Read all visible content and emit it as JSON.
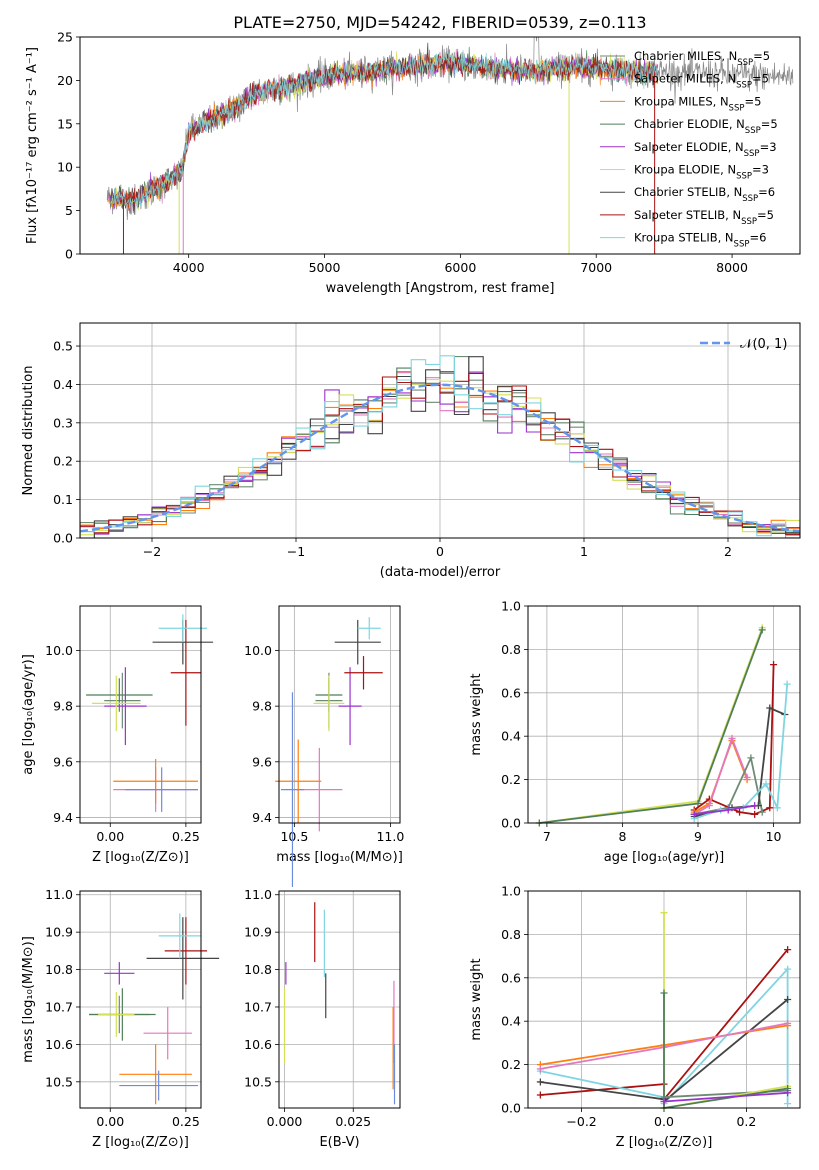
{
  "figure": {
    "title": "PLATE=2750, MJD=54242, FIBERID=0539, z=0.113"
  },
  "model_colors": {
    "chabrier_miles": "#6e8b76",
    "salpeter_miles": "#e377c2",
    "kroupa_miles": "#ff7f0e",
    "chabrier_elodie": "#4f7f5a",
    "salpeter_elodie": "#9932cc",
    "kroupa_elodie": "#d4e157",
    "chabrier_stelib": "#444444",
    "salpeter_stelib": "#aa1111",
    "kroupa_stelib": "#7fd6e0"
  },
  "chart_data": [
    {
      "id": "spectrum",
      "type": "line",
      "xlabel": "wavelength [Angstrom, rest frame]",
      "ylabel": "Flux [fλ10⁻¹⁷ erg cm⁻² s⁻¹ A⁻¹]",
      "xlim": [
        3200,
        8500
      ],
      "ylim": [
        0,
        25
      ],
      "xticks": [
        "4000",
        "5000",
        "6000",
        "7000",
        "8000"
      ],
      "yticks": [
        "0",
        "5",
        "10",
        "15",
        "20",
        "25"
      ],
      "grid": false,
      "legend_position": "top-right",
      "legend": [
        "Chabrier MILES, N_SSP=5",
        "Salpeter MILES, N_SSP=5",
        "Kroupa MILES, N_SSP=5",
        "Chabrier ELODIE, N_SSP=5",
        "Salpeter ELODIE, N_SSP=3",
        "Kroupa ELODIE, N_SSP=3",
        "Chabrier STELIB, N_SSP=6",
        "Salpeter STELIB, N_SSP=5",
        "Kroupa STELIB, N_SSP=6"
      ],
      "continuum": {
        "x": [
          3400,
          3600,
          3800,
          3950,
          4000,
          4100,
          4300,
          4500,
          4800,
          5000,
          5300,
          5600,
          5900,
          6200,
          6500,
          6800,
          7000,
          7300,
          7450
        ],
        "y": [
          6.5,
          6.2,
          8.0,
          9.5,
          14.0,
          15.0,
          16.5,
          18.5,
          19.5,
          20.5,
          21.0,
          21.5,
          22.0,
          21.5,
          21.0,
          21.5,
          21.5,
          21.0,
          21.0
        ]
      }
    },
    {
      "id": "residual-hist",
      "type": "line",
      "xlabel": "(data-model)/error",
      "ylabel": "Normed distribution",
      "xlim": [
        -2.5,
        2.5
      ],
      "ylim": [
        0,
        0.56
      ],
      "xticks": [
        "−2",
        "−1",
        "0",
        "1",
        "2"
      ],
      "yticks": [
        "0.0",
        "0.1",
        "0.2",
        "0.3",
        "0.4",
        "0.5"
      ],
      "grid": true,
      "legend_position": "top-right",
      "legend": [
        "𝒩(0, 1)"
      ],
      "gaussian": {
        "mean": 0,
        "sigma": 1
      },
      "bin_width": 0.1
    },
    {
      "id": "age-vs-z",
      "type": "scatter",
      "xlabel": "Z [log₁₀(Z/Z⊙)]",
      "ylabel": "age [log₁₀(age/yr)]",
      "xlim": [
        -0.1,
        0.3
      ],
      "ylim": [
        9.38,
        10.16
      ],
      "xticks": [
        "0.00",
        "0.25"
      ],
      "yticks": [
        "9.4",
        "9.6",
        "9.8",
        "10.0"
      ],
      "grid": true,
      "points": [
        {
          "model": "chabrier_miles",
          "x": 0.04,
          "xerr": 0.06,
          "y": 9.82,
          "yerr": 0.1
        },
        {
          "model": "salpeter_miles",
          "x": 0.15,
          "xerr": 0.14,
          "y": 9.5,
          "yerr": 0.08
        },
        {
          "model": "kroupa_miles",
          "x": 0.15,
          "xerr": 0.14,
          "y": 9.53,
          "yerr": 0.08
        },
        {
          "model": "chabrier_elodie",
          "x": 0.03,
          "xerr": 0.11,
          "y": 9.84,
          "yerr": 0.06
        },
        {
          "model": "salpeter_elodie",
          "x": 0.05,
          "xerr": 0.07,
          "y": 9.8,
          "yerr": 0.14
        },
        {
          "model": "kroupa_elodie",
          "x": 0.02,
          "xerr": 0.08,
          "y": 9.81,
          "yerr": 0.1
        },
        {
          "model": "chabrier_stelib",
          "x": 0.24,
          "xerr": 0.1,
          "y": 10.03,
          "yerr": 0.08
        },
        {
          "model": "salpeter_stelib",
          "x": 0.25,
          "xerr": 0.05,
          "y": 9.92,
          "yerr": 0.19
        },
        {
          "model": "kroupa_stelib",
          "x": 0.24,
          "xerr": 0.08,
          "y": 10.08,
          "yerr": 0.05
        },
        {
          "model": "blue_extra",
          "x": 0.17,
          "xerr": 0.12,
          "y": 9.5,
          "yerr": 0.08
        }
      ]
    },
    {
      "id": "age-vs-mass",
      "type": "scatter",
      "xlabel": "mass [log₁₀(M/M⊙)]",
      "ylabel": "",
      "xlim": [
        10.42,
        11.05
      ],
      "ylim": [
        9.38,
        10.16
      ],
      "xticks": [
        "10.5",
        "11.0"
      ],
      "yticks": [
        "9.4",
        "9.6",
        "9.8",
        "10.0"
      ],
      "grid": true,
      "points": [
        {
          "model": "chabrier_miles",
          "x": 10.68,
          "xerr": 0.07,
          "y": 9.82,
          "yerr": 0.1
        },
        {
          "model": "salpeter_miles",
          "x": 10.63,
          "xerr": 0.12,
          "y": 9.5,
          "yerr": 0.15
        },
        {
          "model": "kroupa_miles",
          "x": 10.52,
          "xerr": 0.12,
          "y": 9.53,
          "yerr": 0.15
        },
        {
          "model": "chabrier_elodie",
          "x": 10.68,
          "xerr": 0.07,
          "y": 9.84,
          "yerr": 0.06
        },
        {
          "model": "salpeter_elodie",
          "x": 10.79,
          "xerr": 0.06,
          "y": 9.8,
          "yerr": 0.14
        },
        {
          "model": "kroupa_elodie",
          "x": 10.68,
          "xerr": 0.08,
          "y": 9.81,
          "yerr": 0.1
        },
        {
          "model": "chabrier_stelib",
          "x": 10.83,
          "xerr": 0.12,
          "y": 10.03,
          "yerr": 0.08
        },
        {
          "model": "salpeter_stelib",
          "x": 10.86,
          "xerr": 0.1,
          "y": 9.92,
          "yerr": 0.06
        },
        {
          "model": "kroupa_stelib",
          "x": 10.89,
          "xerr": 0.06,
          "y": 10.08,
          "yerr": 0.04
        },
        {
          "model": "blue_extra",
          "x": 10.49,
          "xerr": 0.06,
          "y": 9.5,
          "yerr": 0.35
        }
      ]
    },
    {
      "id": "weight-vs-age",
      "type": "line",
      "xlabel": "age [log₁₀(age/yr)]",
      "ylabel": "mass weight",
      "xlim": [
        6.75,
        10.35
      ],
      "ylim": [
        0,
        1.0
      ],
      "xticks": [
        "7",
        "8",
        "9",
        "10"
      ],
      "yticks": [
        "0.0",
        "0.2",
        "0.4",
        "0.6",
        "0.8",
        "1.0"
      ],
      "grid": true,
      "series": [
        {
          "model": "kroupa_elodie",
          "x": [
            6.9,
            9.0,
            9.85
          ],
          "y": [
            0.0,
            0.1,
            0.9
          ]
        },
        {
          "model": "chabrier_elodie",
          "x": [
            6.9,
            9.0,
            9.85
          ],
          "y": [
            0.0,
            0.09,
            0.89
          ]
        },
        {
          "model": "salpeter_stelib",
          "x": [
            8.95,
            9.15,
            9.55,
            9.75,
            9.95,
            10.0
          ],
          "y": [
            0.06,
            0.11,
            0.05,
            0.04,
            0.07,
            0.73
          ]
        },
        {
          "model": "kroupa_miles",
          "x": [
            8.95,
            9.15,
            9.45,
            9.65
          ],
          "y": [
            0.05,
            0.09,
            0.38,
            0.2
          ]
        },
        {
          "model": "salpeter_miles",
          "x": [
            8.95,
            9.15,
            9.45,
            9.65
          ],
          "y": [
            0.04,
            0.08,
            0.39,
            0.21
          ]
        },
        {
          "model": "chabrier_miles",
          "x": [
            8.95,
            9.4,
            9.7,
            9.85
          ],
          "y": [
            0.04,
            0.07,
            0.3,
            0.05
          ]
        },
        {
          "model": "chabrier_stelib",
          "x": [
            8.95,
            9.45,
            9.8,
            9.95,
            10.15
          ],
          "y": [
            0.03,
            0.07,
            0.08,
            0.53,
            0.5
          ]
        },
        {
          "model": "kroupa_stelib",
          "x": [
            8.95,
            9.3,
            9.6,
            9.9,
            10.05,
            10.18
          ],
          "y": [
            0.02,
            0.06,
            0.07,
            0.18,
            0.07,
            0.64
          ]
        },
        {
          "model": "salpeter_elodie",
          "x": [
            8.95,
            9.4,
            9.75
          ],
          "y": [
            0.04,
            0.06,
            0.08
          ]
        }
      ]
    },
    {
      "id": "mass-vs-z",
      "type": "scatter",
      "xlabel": "Z [log₁₀(Z/Z⊙)]",
      "ylabel": "mass [log₁₀(M/M⊙)]",
      "xlim": [
        -0.1,
        0.3
      ],
      "ylim": [
        10.43,
        11.01
      ],
      "xticks": [
        "0.00",
        "0.25"
      ],
      "yticks": [
        "10.5",
        "10.6",
        "10.7",
        "10.8",
        "10.9",
        "11.0"
      ],
      "grid": true,
      "points": [
        {
          "model": "chabrier_miles",
          "x": 0.03,
          "xerr": 0.1,
          "y": 10.68,
          "yerr": 0.05
        },
        {
          "model": "salpeter_miles",
          "x": 0.19,
          "xerr": 0.08,
          "y": 10.63,
          "yerr": 0.07
        },
        {
          "model": "kroupa_miles",
          "x": 0.15,
          "xerr": 0.12,
          "y": 10.52,
          "yerr": 0.08
        },
        {
          "model": "chabrier_elodie",
          "x": 0.04,
          "xerr": 0.11,
          "y": 10.68,
          "yerr": 0.07
        },
        {
          "model": "salpeter_elodie",
          "x": 0.03,
          "xerr": 0.05,
          "y": 10.79,
          "yerr": 0.03
        },
        {
          "model": "kroupa_elodie",
          "x": 0.02,
          "xerr": 0.06,
          "y": 10.68,
          "yerr": 0.06
        },
        {
          "model": "chabrier_stelib",
          "x": 0.24,
          "xerr": 0.12,
          "y": 10.83,
          "yerr": 0.11
        },
        {
          "model": "salpeter_stelib",
          "x": 0.25,
          "xerr": 0.07,
          "y": 10.85,
          "yerr": 0.09
        },
        {
          "model": "kroupa_stelib",
          "x": 0.23,
          "xerr": 0.07,
          "y": 10.89,
          "yerr": 0.06
        },
        {
          "model": "blue_extra",
          "x": 0.16,
          "xerr": 0.13,
          "y": 10.49,
          "yerr": 0.04
        }
      ]
    },
    {
      "id": "mass-vs-ebv",
      "type": "scatter",
      "xlabel": "E(B-V)",
      "ylabel": "",
      "xlim": [
        -0.002,
        0.042
      ],
      "ylim": [
        10.43,
        11.01
      ],
      "xticks": [
        "0.000",
        "0.025"
      ],
      "yticks": [
        "10.5",
        "10.6",
        "10.7",
        "10.8",
        "10.9",
        "11.0"
      ],
      "grid": true,
      "points": [
        {
          "model": "kroupa_elodie",
          "x": 0.0,
          "y": 10.65,
          "yerr": 0.1
        },
        {
          "model": "salpeter_elodie",
          "x": 0.0005,
          "y": 10.79,
          "yerr": 0.03
        },
        {
          "model": "salpeter_stelib",
          "x": 0.011,
          "y": 10.9,
          "yerr": 0.08
        },
        {
          "model": "chabrier_stelib",
          "x": 0.015,
          "y": 10.73,
          "yerr": 0.06
        },
        {
          "model": "kroupa_stelib",
          "x": 0.0145,
          "y": 10.87,
          "yerr": 0.09
        },
        {
          "model": "kroupa_miles",
          "x": 0.0395,
          "y": 10.59,
          "yerr": 0.11
        },
        {
          "model": "salpeter_miles",
          "x": 0.0398,
          "y": 10.66,
          "yerr": 0.11
        },
        {
          "model": "blue_extra",
          "x": 0.04,
          "y": 10.52,
          "yerr": 0.08
        }
      ]
    },
    {
      "id": "weight-vs-z",
      "type": "line",
      "xlabel": "Z [log₁₀(Z/Z⊙)]",
      "ylabel": "mass weight",
      "xlim": [
        -0.33,
        0.33
      ],
      "ylim": [
        0,
        1.0
      ],
      "xticks": [
        "−0.2",
        "0.0",
        "0.2"
      ],
      "yticks": [
        "0.0",
        "0.2",
        "0.4",
        "0.6",
        "0.8",
        "1.0"
      ],
      "grid": true,
      "series": [
        {
          "model": "salpeter_stelib",
          "x": [
            -0.3,
            0.0,
            0.0,
            0.3
          ],
          "y": [
            0.06,
            0.11,
            0.04,
            0.73
          ]
        },
        {
          "model": "kroupa_stelib",
          "x": [
            -0.3,
            0.0,
            0.0,
            0.3,
            0.3
          ],
          "y": [
            0.17,
            0.05,
            0.02,
            0.64,
            0.02
          ]
        },
        {
          "model": "chabrier_stelib",
          "x": [
            -0.3,
            0.0,
            0.0,
            0.3
          ],
          "y": [
            0.12,
            0.04,
            0.03,
            0.5
          ]
        },
        {
          "model": "kroupa_miles",
          "x": [
            -0.3,
            0.0,
            0.3
          ],
          "y": [
            0.2,
            0.29,
            0.38
          ]
        },
        {
          "model": "salpeter_miles",
          "x": [
            -0.3,
            0.0,
            0.3
          ],
          "y": [
            0.18,
            0.28,
            0.39
          ]
        },
        {
          "model": "chabrier_miles",
          "x": [
            0.0,
            0.3
          ],
          "y": [
            0.05,
            0.08
          ]
        },
        {
          "model": "kroupa_elodie",
          "x": [
            0.0,
            0.0,
            0.3
          ],
          "y": [
            0.9,
            0.0,
            0.1
          ]
        },
        {
          "model": "chabrier_elodie",
          "x": [
            0.0,
            0.0,
            0.3
          ],
          "y": [
            0.53,
            0.0,
            0.09
          ]
        },
        {
          "model": "salpeter_elodie",
          "x": [
            0.0,
            0.3
          ],
          "y": [
            0.03,
            0.07
          ]
        }
      ]
    }
  ]
}
